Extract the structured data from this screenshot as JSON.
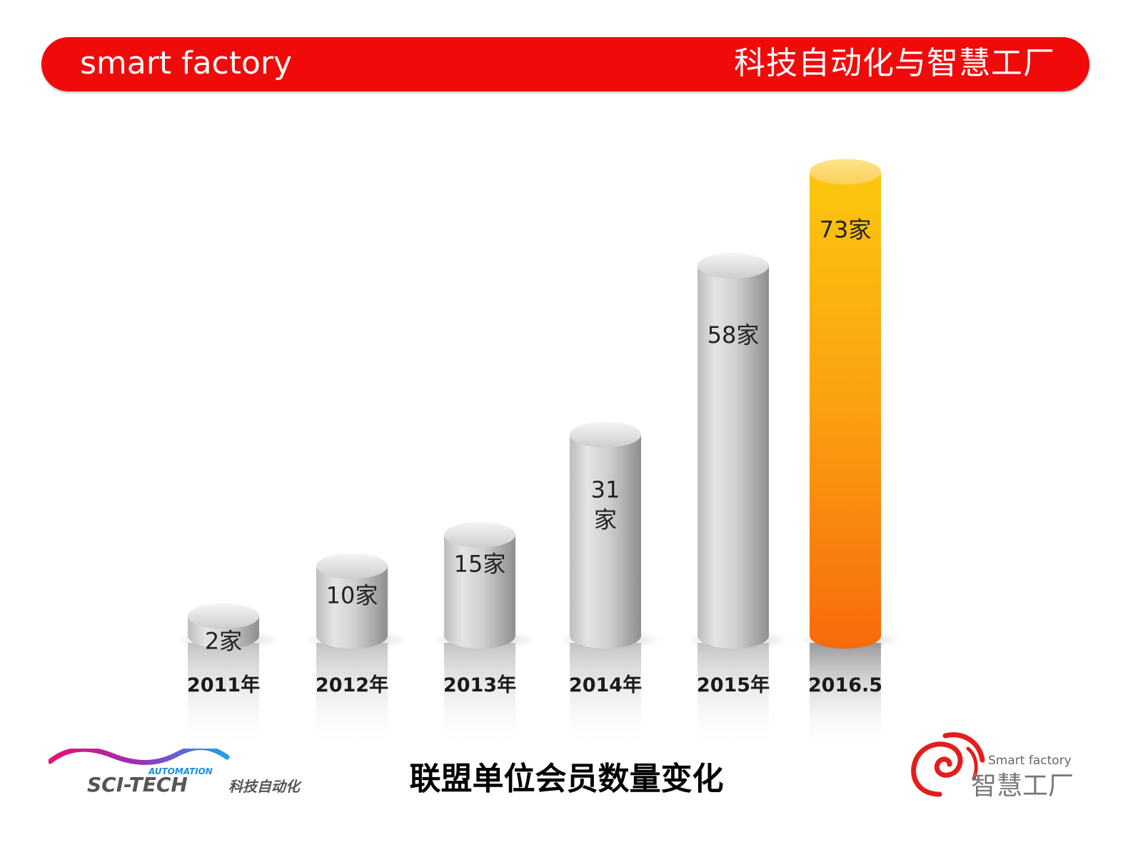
{
  "header": {
    "left_text": "smart factory",
    "right_text": "科技自动化与智慧工厂"
  },
  "chart_data": {
    "type": "bar",
    "categories": [
      "2011年",
      "2012年",
      "2013年",
      "2014年",
      "2015年",
      "2016.5"
    ],
    "values": [
      2,
      10,
      15,
      31,
      58,
      73
    ],
    "data_labels": [
      "2家",
      "10家",
      "15家",
      "31家",
      "58家",
      "73家"
    ],
    "title": "联盟单位会员数量变化",
    "unit": "家",
    "highlight_index": 5,
    "colors": {
      "default_bar": "#c8c8c8",
      "highlight_top": "#fbd86a",
      "highlight_bottom": "#f86a0c"
    }
  },
  "logos": {
    "left": {
      "small": "AUTOMATION",
      "main": "SCI-TECH",
      "cn": "科技自动化"
    },
    "right": {
      "en": "Smart factory",
      "cn": "智慧工厂"
    }
  },
  "colors": {
    "banner": "#f10a0a",
    "banner_text": "#ffffff"
  }
}
